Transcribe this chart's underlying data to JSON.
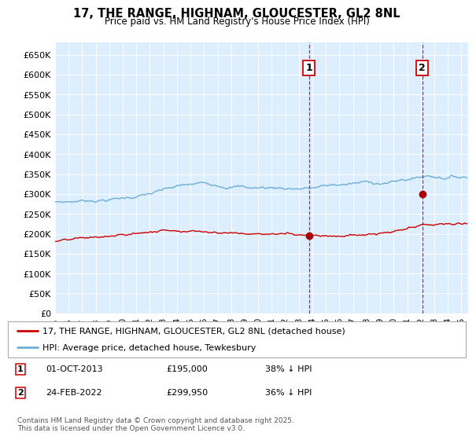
{
  "title": "17, THE RANGE, HIGHNAM, GLOUCESTER, GL2 8NL",
  "subtitle": "Price paid vs. HM Land Registry's House Price Index (HPI)",
  "yticks": [
    0,
    50000,
    100000,
    150000,
    200000,
    250000,
    300000,
    350000,
    400000,
    450000,
    500000,
    550000,
    600000,
    650000
  ],
  "ytick_labels": [
    "£0",
    "£50K",
    "£100K",
    "£150K",
    "£200K",
    "£250K",
    "£300K",
    "£350K",
    "£400K",
    "£450K",
    "£500K",
    "£550K",
    "£600K",
    "£650K"
  ],
  "ylim": [
    0,
    680000
  ],
  "xlim_start": 1995.0,
  "xlim_end": 2025.5,
  "background_color": "#ddeeff",
  "grid_color": "#ffffff",
  "line1_color": "#cc0000",
  "line2_color": "#6baed6",
  "transaction1_x": 2013.75,
  "transaction1_y": 195000,
  "transaction2_x": 2022.12,
  "transaction2_y": 299950,
  "marker_color": "#aa0000",
  "vline_color": "#cc0000",
  "legend_label1": "17, THE RANGE, HIGHNAM, GLOUCESTER, GL2 8NL (detached house)",
  "legend_label2": "HPI: Average price, detached house, Tewkesbury",
  "table_row1": [
    "1",
    "01-OCT-2013",
    "£195,000",
    "38% ↓ HPI"
  ],
  "table_row2": [
    "2",
    "24-FEB-2022",
    "£299,950",
    "36% ↓ HPI"
  ],
  "footnote": "Contains HM Land Registry data © Crown copyright and database right 2025.\nThis data is licensed under the Open Government Licence v3.0.",
  "xtick_years": [
    1995,
    1996,
    1997,
    1998,
    1999,
    2000,
    2001,
    2002,
    2003,
    2004,
    2005,
    2006,
    2007,
    2008,
    2009,
    2010,
    2011,
    2012,
    2013,
    2014,
    2015,
    2016,
    2017,
    2018,
    2019,
    2020,
    2021,
    2022,
    2023,
    2024,
    2025
  ]
}
